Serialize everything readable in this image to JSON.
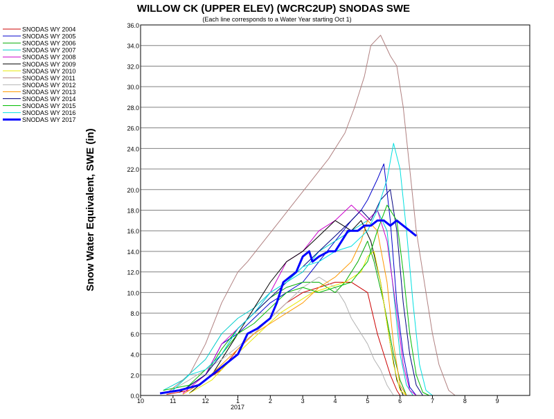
{
  "chart_data": {
    "type": "line",
    "title": "WILLOW CK (UPPER ELEV) (WCRC2UP) SNODAS SWE",
    "subtitle": "(Each line corresponds to a Water Year starting Oct 1)",
    "ylabel": "Snow Water Equivalent, SWE (in)",
    "xlabel": "",
    "year_label": "2017",
    "ylim": [
      0,
      36
    ],
    "y_ticks": [
      "0.0",
      "2.0",
      "4.0",
      "6.0",
      "8.0",
      "10.0",
      "12.0",
      "14.0",
      "16.0",
      "18.0",
      "20.0",
      "22.0",
      "24.0",
      "26.0",
      "28.0",
      "30.0",
      "32.0",
      "34.0",
      "36.0"
    ],
    "x_ticks": [
      "10",
      "11",
      "12",
      "1",
      "2",
      "3",
      "4",
      "5",
      "6",
      "7",
      "8",
      "9"
    ],
    "grid": true,
    "legend_position": "left",
    "series": [
      {
        "name": "SNODAS WY 2004",
        "color": "#cc0000",
        "width": 1,
        "points": [
          [
            0.8,
            0.1
          ],
          [
            1.5,
            0.5
          ],
          [
            2.5,
            2.5
          ],
          [
            3,
            4.5
          ],
          [
            3.5,
            6
          ],
          [
            4,
            7.5
          ],
          [
            4.5,
            9
          ],
          [
            5,
            10
          ],
          [
            5.5,
            10.5
          ],
          [
            6,
            11
          ],
          [
            6.5,
            11
          ],
          [
            7,
            10
          ],
          [
            7.3,
            6
          ],
          [
            7.5,
            4
          ],
          [
            7.7,
            2
          ],
          [
            7.9,
            0.5
          ],
          [
            8,
            0
          ]
        ]
      },
      {
        "name": "SNODAS WY 2005",
        "color": "#0000cc",
        "width": 1,
        "points": [
          [
            1.2,
            0.3
          ],
          [
            2,
            2
          ],
          [
            2.5,
            5
          ],
          [
            3,
            6
          ],
          [
            3.5,
            7.5
          ],
          [
            4,
            9
          ],
          [
            4.5,
            10
          ],
          [
            5,
            11
          ],
          [
            5.5,
            13
          ],
          [
            6,
            15
          ],
          [
            6.5,
            17
          ],
          [
            6.8,
            18
          ],
          [
            7,
            19
          ],
          [
            7.3,
            21
          ],
          [
            7.5,
            22.5
          ],
          [
            7.7,
            17
          ],
          [
            7.9,
            9
          ],
          [
            8.1,
            4
          ],
          [
            8.3,
            0.8
          ],
          [
            8.5,
            0
          ]
        ]
      },
      {
        "name": "SNODAS WY 2006",
        "color": "#00aa00",
        "width": 1,
        "points": [
          [
            1.2,
            0.3
          ],
          [
            2,
            2
          ],
          [
            2.5,
            4.5
          ],
          [
            3,
            6.5
          ],
          [
            3.5,
            8
          ],
          [
            4,
            9.5
          ],
          [
            4.5,
            10.5
          ],
          [
            5,
            11
          ],
          [
            5.5,
            11
          ],
          [
            6,
            10
          ],
          [
            6.3,
            11
          ],
          [
            6.7,
            13
          ],
          [
            7,
            15
          ],
          [
            7.2,
            13
          ],
          [
            7.5,
            9
          ],
          [
            7.8,
            4
          ],
          [
            8,
            1.5
          ],
          [
            8.2,
            0
          ]
        ]
      },
      {
        "name": "SNODAS WY 2007",
        "color": "#00cccc",
        "width": 1,
        "points": [
          [
            0.7,
            0.5
          ],
          [
            1.3,
            1.5
          ],
          [
            2,
            3.5
          ],
          [
            2.5,
            6
          ],
          [
            3,
            7.5
          ],
          [
            3.5,
            8.5
          ],
          [
            4,
            10
          ],
          [
            4.5,
            11
          ],
          [
            5,
            12
          ],
          [
            5.5,
            14
          ],
          [
            6,
            15
          ],
          [
            6.5,
            16
          ],
          [
            7,
            17
          ],
          [
            7.3,
            18
          ],
          [
            7.6,
            16
          ],
          [
            7.8,
            10
          ],
          [
            8,
            4
          ],
          [
            8.2,
            1
          ],
          [
            8.4,
            0
          ]
        ]
      },
      {
        "name": "SNODAS WY 2008",
        "color": "#cc00cc",
        "width": 1,
        "points": [
          [
            1.3,
            0.2
          ],
          [
            2,
            2
          ],
          [
            2.5,
            5
          ],
          [
            3,
            6.5
          ],
          [
            3.5,
            8
          ],
          [
            4,
            10
          ],
          [
            4.5,
            13
          ],
          [
            5,
            14
          ],
          [
            5.5,
            16
          ],
          [
            6,
            17
          ],
          [
            6.5,
            18.5
          ],
          [
            7,
            17
          ],
          [
            7.3,
            18
          ],
          [
            7.6,
            15
          ],
          [
            7.9,
            8
          ],
          [
            8.1,
            3
          ],
          [
            8.3,
            0.5
          ],
          [
            8.5,
            0
          ]
        ]
      },
      {
        "name": "SNODAS WY 2009",
        "color": "#000000",
        "width": 1,
        "points": [
          [
            1.5,
            0.2
          ],
          [
            2.2,
            2
          ],
          [
            2.8,
            5
          ],
          [
            3.2,
            7
          ],
          [
            3.6,
            9
          ],
          [
            4,
            11
          ],
          [
            4.5,
            13
          ],
          [
            5,
            14
          ],
          [
            5.5,
            15.5
          ],
          [
            6,
            17
          ],
          [
            6.5,
            16
          ],
          [
            6.8,
            17
          ],
          [
            7.1,
            15
          ],
          [
            7.4,
            11
          ],
          [
            7.7,
            5
          ],
          [
            7.9,
            1.5
          ],
          [
            8.1,
            0
          ]
        ]
      },
      {
        "name": "SNODAS WY 2010",
        "color": "#e8e800",
        "width": 1,
        "points": [
          [
            1.5,
            0.2
          ],
          [
            2.2,
            1.5
          ],
          [
            2.8,
            3.5
          ],
          [
            3.3,
            5
          ],
          [
            3.8,
            6.5
          ],
          [
            4.3,
            8
          ],
          [
            4.8,
            9
          ],
          [
            5.3,
            10
          ],
          [
            5.8,
            10.5
          ],
          [
            6.3,
            11
          ],
          [
            6.8,
            12
          ],
          [
            7,
            13.5
          ],
          [
            7.2,
            14
          ],
          [
            7.4,
            11
          ],
          [
            7.6,
            7
          ],
          [
            7.8,
            3
          ],
          [
            8,
            0.5
          ],
          [
            8.2,
            0
          ]
        ]
      },
      {
        "name": "SNODAS WY 2011",
        "color": "#b08080",
        "width": 1,
        "points": [
          [
            0.8,
            0.2
          ],
          [
            1.5,
            2
          ],
          [
            2,
            5
          ],
          [
            2.5,
            9
          ],
          [
            3,
            12
          ],
          [
            3.3,
            13
          ],
          [
            3.8,
            15
          ],
          [
            4.3,
            17
          ],
          [
            4.8,
            19
          ],
          [
            5.3,
            21
          ],
          [
            5.8,
            23
          ],
          [
            6.3,
            25.5
          ],
          [
            6.6,
            28
          ],
          [
            6.9,
            31
          ],
          [
            7.1,
            34
          ],
          [
            7.4,
            35
          ],
          [
            7.7,
            33
          ],
          [
            7.9,
            32
          ],
          [
            8.1,
            28
          ],
          [
            8.3,
            22
          ],
          [
            8.5,
            16
          ],
          [
            8.8,
            10
          ],
          [
            9,
            6
          ],
          [
            9.2,
            3
          ],
          [
            9.5,
            0.5
          ],
          [
            9.7,
            0
          ]
        ]
      },
      {
        "name": "SNODAS WY 2012",
        "color": "#b4b4b4",
        "width": 1,
        "points": [
          [
            0.8,
            0.2
          ],
          [
            1.5,
            1.5
          ],
          [
            2.5,
            3.5
          ],
          [
            3.5,
            6
          ],
          [
            4.5,
            9
          ],
          [
            5,
            10.5
          ],
          [
            5.5,
            11.5
          ],
          [
            6,
            10.5
          ],
          [
            6.3,
            9
          ],
          [
            6.5,
            7.5
          ],
          [
            6.8,
            6
          ],
          [
            7,
            5
          ],
          [
            7.2,
            3.5
          ],
          [
            7.4,
            2.5
          ],
          [
            7.6,
            1
          ],
          [
            7.8,
            0
          ]
        ]
      },
      {
        "name": "SNODAS WY 2013",
        "color": "#ff9900",
        "width": 1,
        "points": [
          [
            1.3,
            0.1
          ],
          [
            2,
            1.5
          ],
          [
            2.5,
            3
          ],
          [
            3,
            4.5
          ],
          [
            3.5,
            6
          ],
          [
            4,
            7
          ],
          [
            4.5,
            8
          ],
          [
            5,
            9
          ],
          [
            5.5,
            10.5
          ],
          [
            6,
            11.5
          ],
          [
            6.5,
            13
          ],
          [
            6.8,
            15
          ],
          [
            7,
            17
          ],
          [
            7.3,
            16
          ],
          [
            7.6,
            11
          ],
          [
            7.8,
            5
          ],
          [
            8,
            1
          ],
          [
            8.2,
            0
          ]
        ]
      },
      {
        "name": "SNODAS WY 2014",
        "color": "#000080",
        "width": 1,
        "points": [
          [
            1.2,
            0.3
          ],
          [
            2,
            2
          ],
          [
            2.5,
            4
          ],
          [
            3,
            6.5
          ],
          [
            3.5,
            8
          ],
          [
            4,
            9.5
          ],
          [
            4.5,
            11
          ],
          [
            5,
            12.5
          ],
          [
            5.5,
            14
          ],
          [
            6,
            15.5
          ],
          [
            6.5,
            17
          ],
          [
            6.8,
            18
          ],
          [
            7.1,
            17
          ],
          [
            7.4,
            19
          ],
          [
            7.7,
            20
          ],
          [
            7.9,
            16
          ],
          [
            8.1,
            9
          ],
          [
            8.3,
            4
          ],
          [
            8.5,
            1
          ],
          [
            8.7,
            0
          ]
        ]
      },
      {
        "name": "SNODAS WY 2015",
        "color": "#00bb00",
        "width": 1,
        "points": [
          [
            0.7,
            0.5
          ],
          [
            1.5,
            1
          ],
          [
            2,
            2.5
          ],
          [
            2.5,
            4
          ],
          [
            3,
            6
          ],
          [
            3.5,
            7
          ],
          [
            4,
            8.5
          ],
          [
            4.5,
            10
          ],
          [
            5,
            10.5
          ],
          [
            5.5,
            10
          ],
          [
            6,
            10.5
          ],
          [
            6.5,
            11
          ],
          [
            7,
            13
          ],
          [
            7.3,
            16
          ],
          [
            7.6,
            18.5
          ],
          [
            7.9,
            17
          ],
          [
            8.1,
            12
          ],
          [
            8.3,
            6
          ],
          [
            8.5,
            2
          ],
          [
            8.7,
            0.3
          ],
          [
            8.9,
            0
          ]
        ]
      },
      {
        "name": "SNODAS WY 2016",
        "color": "#00e0e0",
        "width": 1,
        "points": [
          [
            1,
            0.5
          ],
          [
            1.5,
            2
          ],
          [
            2,
            2.5
          ],
          [
            2.5,
            4
          ],
          [
            3,
            6.5
          ],
          [
            3.5,
            8
          ],
          [
            4,
            10
          ],
          [
            4.5,
            11
          ],
          [
            5,
            12.5
          ],
          [
            5.5,
            13
          ],
          [
            6,
            14
          ],
          [
            6.5,
            14.5
          ],
          [
            7,
            16
          ],
          [
            7.3,
            18
          ],
          [
            7.6,
            21
          ],
          [
            7.8,
            24.5
          ],
          [
            8,
            22
          ],
          [
            8.2,
            16
          ],
          [
            8.4,
            9
          ],
          [
            8.6,
            3
          ],
          [
            8.8,
            0.5
          ],
          [
            9,
            0
          ]
        ]
      },
      {
        "name": "SNODAS WY 2017",
        "color": "#0000ff",
        "width": 3,
        "points": [
          [
            0.6,
            0.2
          ],
          [
            1.2,
            0.5
          ],
          [
            1.8,
            1
          ],
          [
            2.2,
            2
          ],
          [
            2.6,
            3
          ],
          [
            3,
            4
          ],
          [
            3.3,
            6
          ],
          [
            3.6,
            6.5
          ],
          [
            4,
            7.5
          ],
          [
            4.2,
            9
          ],
          [
            4.4,
            11
          ],
          [
            4.6,
            11.5
          ],
          [
            4.8,
            12
          ],
          [
            5,
            13.5
          ],
          [
            5.2,
            14
          ],
          [
            5.3,
            13
          ],
          [
            5.5,
            13.5
          ],
          [
            5.8,
            14
          ],
          [
            6,
            14
          ],
          [
            6.2,
            15
          ],
          [
            6.4,
            16
          ],
          [
            6.7,
            16
          ],
          [
            6.9,
            16.5
          ],
          [
            7.1,
            16.5
          ],
          [
            7.3,
            17
          ],
          [
            7.5,
            17
          ],
          [
            7.7,
            16.5
          ],
          [
            7.9,
            17
          ],
          [
            8.1,
            16.5
          ],
          [
            8.3,
            16
          ],
          [
            8.5,
            15.5
          ]
        ]
      }
    ]
  }
}
